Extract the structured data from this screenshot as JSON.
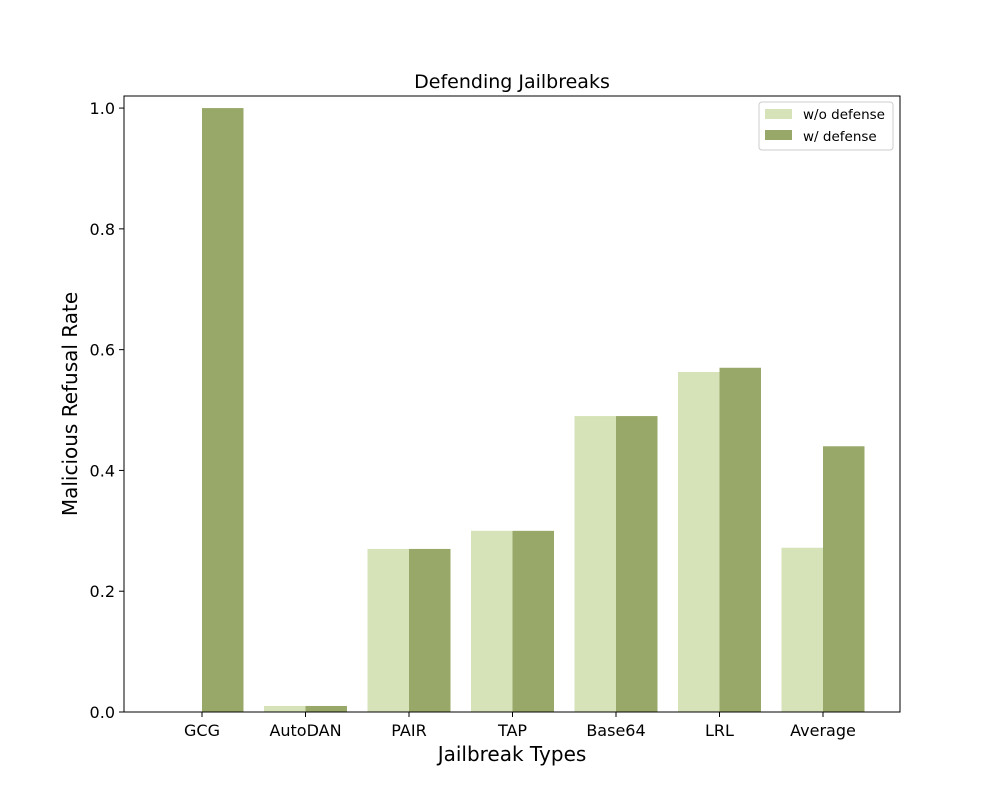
{
  "chart_data": {
    "type": "bar",
    "title": "Defending Jailbreaks",
    "xlabel": "Jailbreak Types",
    "ylabel": "Malicious Refusal Rate",
    "categories": [
      "GCG",
      "AutoDAN",
      "PAIR",
      "TAP",
      "Base64",
      "LRL",
      "Average"
    ],
    "series": [
      {
        "name": "w/o defense",
        "color": "#d6e2b7",
        "values": [
          0.0,
          0.01,
          0.27,
          0.3,
          0.49,
          0.563,
          0.272
        ]
      },
      {
        "name": "w/ defense",
        "color": "#98a869",
        "values": [
          1.0,
          0.01,
          0.27,
          0.3,
          0.49,
          0.57,
          0.44
        ]
      }
    ],
    "ylim": [
      0,
      1.02
    ],
    "yticks": [
      "0.0",
      "0.2",
      "0.4",
      "0.6",
      "0.8",
      "1.0"
    ],
    "grid": false,
    "legend_position": "top-right"
  }
}
